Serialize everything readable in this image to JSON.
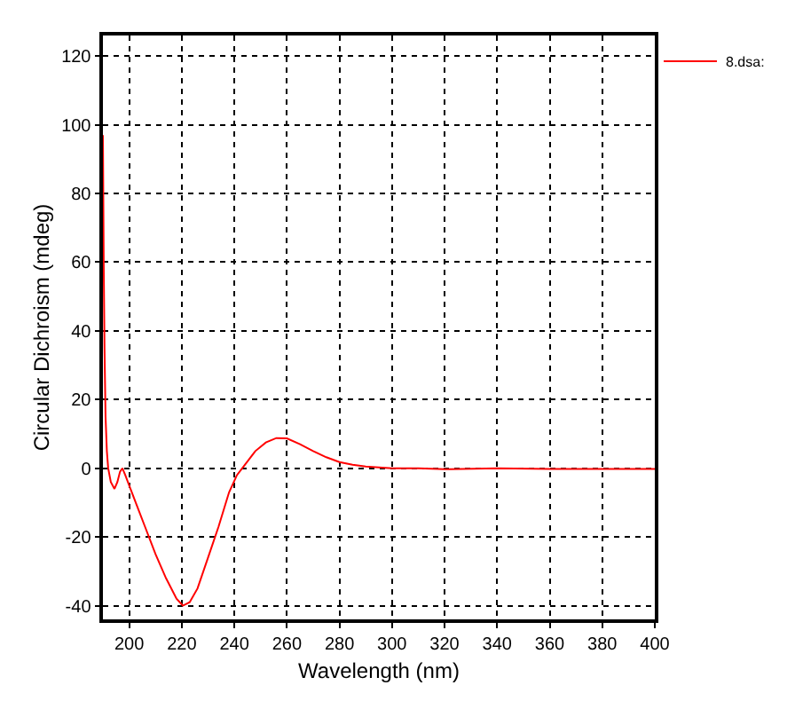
{
  "chart_data": {
    "type": "line",
    "xlabel": "Wavelength (nm)",
    "ylabel": "Circular Dichroism (mdeg)",
    "x": [
      190,
      190.3,
      190.6,
      191,
      191.5,
      192,
      193,
      194.4,
      195.5,
      196.5,
      197.4,
      198.5,
      200,
      203,
      206,
      210,
      214,
      218,
      220.4,
      223,
      226,
      230,
      234,
      238,
      241,
      244,
      248,
      252,
      256,
      260,
      265,
      270,
      275,
      280,
      285,
      290,
      300,
      310,
      320,
      340,
      360,
      380,
      400
    ],
    "series": [
      {
        "name": "8.dsa:",
        "color": "#ff0000",
        "values": [
          97,
          60,
          35,
          15,
          5,
          0,
          -4,
          -6,
          -4,
          -1,
          0,
          -2,
          -5,
          -11,
          -17,
          -25,
          -32,
          -38,
          -40,
          -39,
          -35,
          -26,
          -17,
          -7,
          -2,
          1,
          5,
          7.5,
          8.8,
          8.7,
          7,
          5,
          3.2,
          1.8,
          1,
          0.5,
          0,
          0,
          -0.3,
          0,
          -0.2,
          -0.2,
          -0.2
        ]
      }
    ],
    "xlim": [
      190,
      400
    ],
    "ylim": [
      -44,
      126
    ],
    "xticks": [
      200,
      220,
      240,
      260,
      280,
      300,
      320,
      340,
      360,
      380,
      400
    ],
    "yticks": [
      -40,
      -20,
      0,
      20,
      40,
      60,
      80,
      100,
      120
    ],
    "grid": true,
    "legend": "top right",
    "marker": "none",
    "line_style": "solid"
  }
}
